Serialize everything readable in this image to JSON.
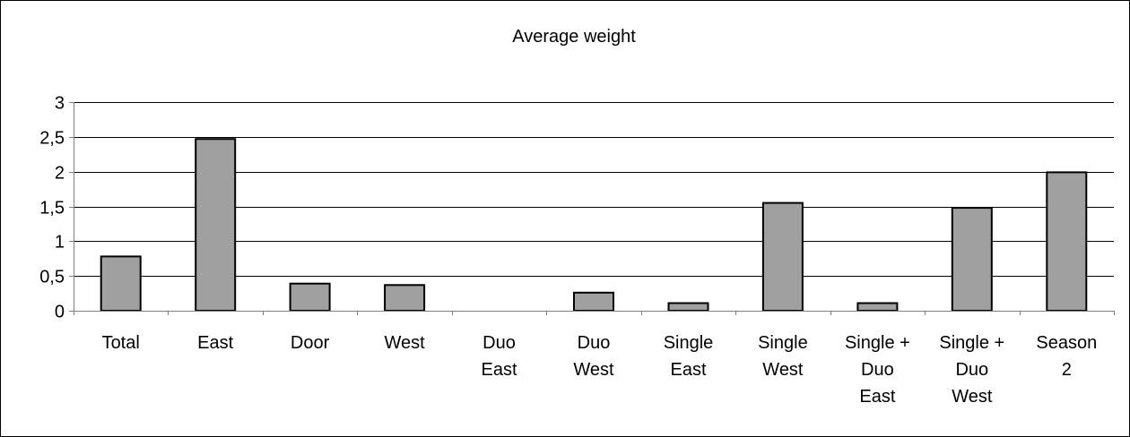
{
  "chart_data": {
    "type": "bar",
    "title": "Average weight",
    "xlabel": "",
    "ylabel": "",
    "categories": [
      [
        "Total"
      ],
      [
        "East"
      ],
      [
        "Door"
      ],
      [
        "West"
      ],
      [
        "Duo",
        "East"
      ],
      [
        "Duo",
        "West"
      ],
      [
        "Single",
        "East"
      ],
      [
        "Single",
        "West"
      ],
      [
        "Single +",
        "Duo",
        "East"
      ],
      [
        "Single +",
        "Duo",
        "West"
      ],
      [
        "Season",
        "2"
      ]
    ],
    "values": [
      0.78,
      2.47,
      0.39,
      0.37,
      0,
      0.26,
      0.11,
      1.55,
      0.11,
      1.48,
      1.99
    ],
    "ylim": [
      0,
      3
    ],
    "yticks": [
      0,
      0.5,
      1,
      1.5,
      2,
      2.5,
      3
    ],
    "ytick_labels": [
      "0",
      "0,5",
      "1",
      "1,5",
      "2",
      "2,5",
      "3"
    ],
    "grid": true,
    "legend": "none",
    "colors": {
      "bar_fill": "#a0a0a0",
      "bar_stroke": "#000000",
      "grid": "#000000",
      "axis": "#808080",
      "frame": "#000000",
      "background": "#ffffff"
    }
  }
}
